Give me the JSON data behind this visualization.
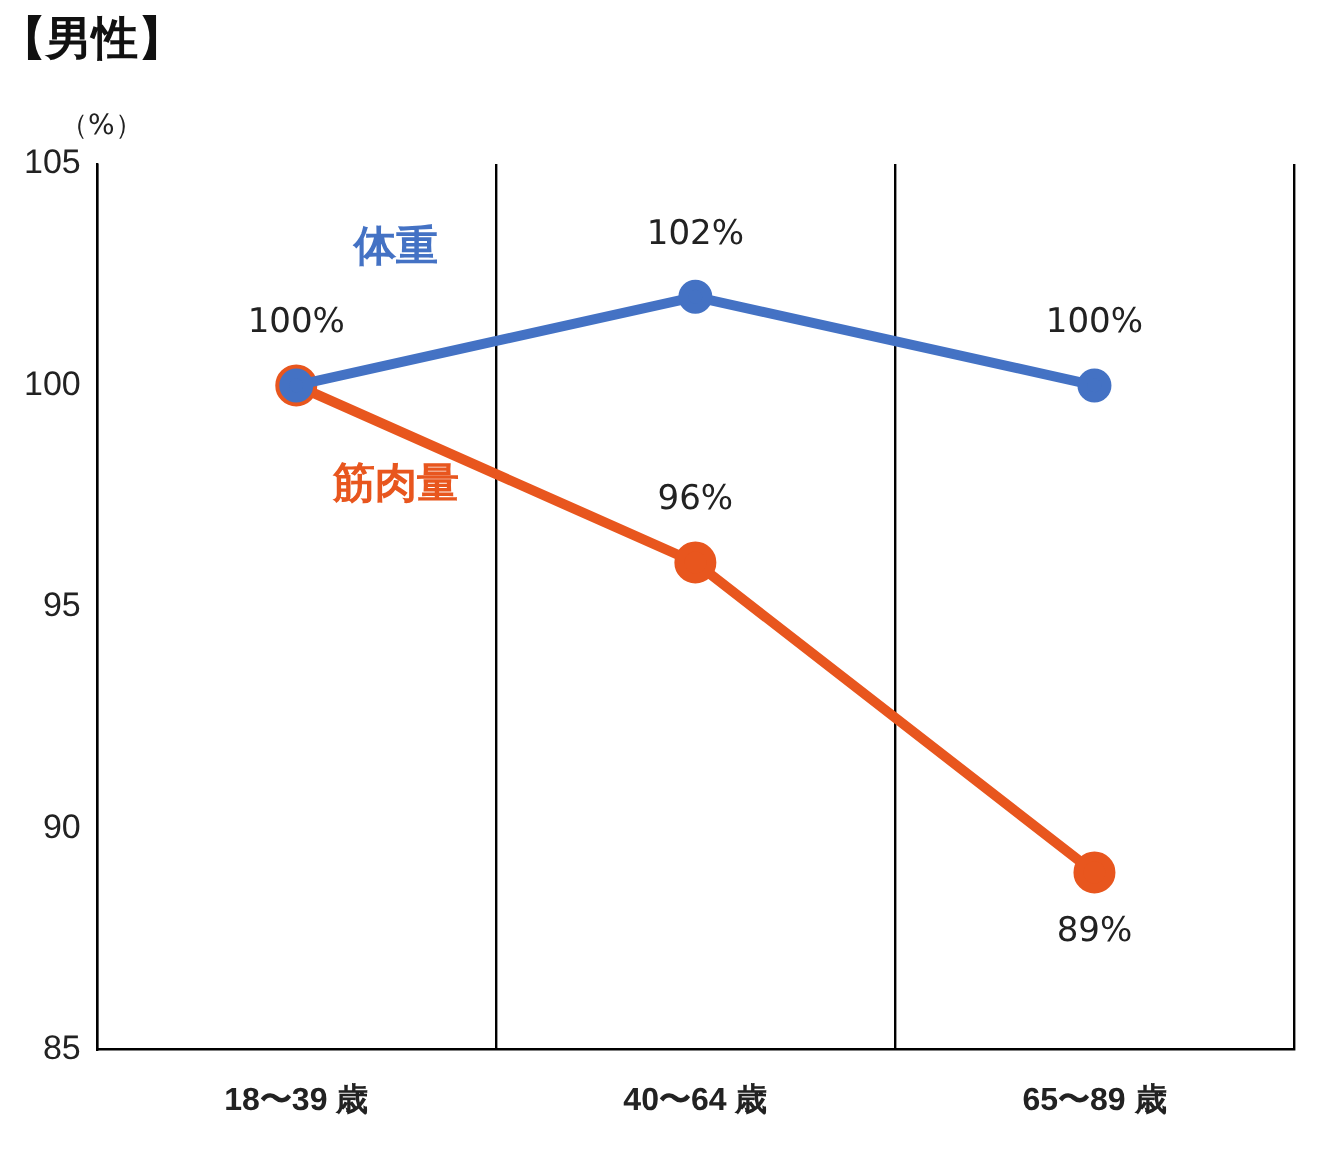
{
  "chart_data": {
    "type": "line",
    "title": "【男性】",
    "ylabel": "（%）",
    "categories": [
      "18〜39 歳",
      "40〜64 歳",
      "65〜89 歳"
    ],
    "series": [
      {
        "name": "体重",
        "color": "#4472c4",
        "values": [
          100,
          102,
          100
        ],
        "value_labels": [
          "100%",
          "102%",
          "100%"
        ]
      },
      {
        "name": "筋肉量",
        "color": "#e8561e",
        "values": [
          100,
          96,
          89
        ],
        "value_labels": [
          null,
          "96%",
          "89%"
        ]
      }
    ],
    "ylim": [
      85,
      105
    ],
    "yticks": [
      85,
      90,
      95,
      100,
      105
    ],
    "grid": "x",
    "legend": false,
    "marker": "circle",
    "line_style": "solid"
  }
}
